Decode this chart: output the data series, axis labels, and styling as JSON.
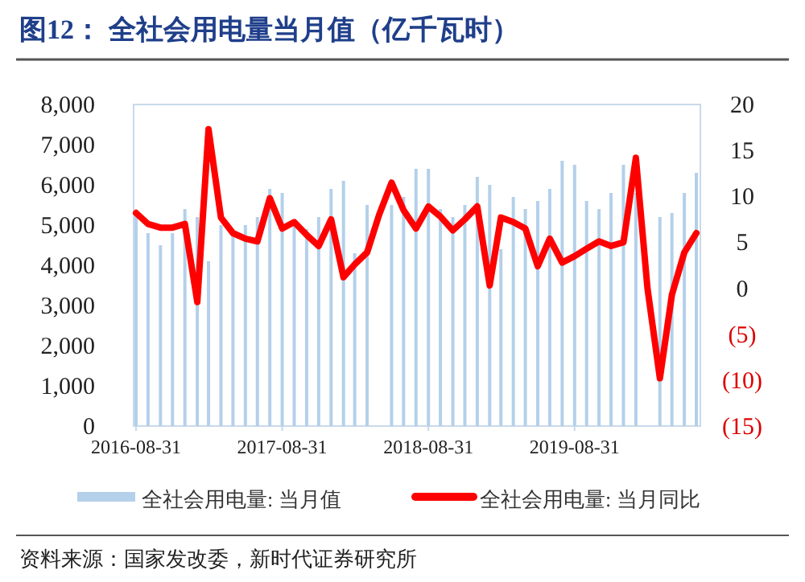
{
  "chart_data": {
    "type": "bar",
    "title": "图12：  全社会用电量当月值（亿千瓦时）",
    "x": [
      "2016-08-31",
      "2016-09-30",
      "2016-10-31",
      "2016-11-30",
      "2016-12-31",
      "2017-01-31",
      "2017-02-28",
      "2017-03-31",
      "2017-04-30",
      "2017-05-31",
      "2017-06-30",
      "2017-07-31",
      "2017-08-31",
      "2017-09-30",
      "2017-10-31",
      "2017-11-30",
      "2017-12-31",
      "2018-01-31",
      "2018-02-28",
      "2018-03-31",
      "2018-04-30",
      "2018-05-31",
      "2018-06-30",
      "2018-07-31",
      "2018-08-31",
      "2018-09-30",
      "2018-10-31",
      "2018-11-30",
      "2018-12-31",
      "2019-01-31",
      "2019-02-28",
      "2019-03-31",
      "2019-04-30",
      "2019-05-31",
      "2019-06-30",
      "2019-07-31",
      "2019-08-31",
      "2019-09-30",
      "2019-10-31",
      "2019-11-30",
      "2019-12-31",
      "2020-01-31",
      "2020-02-29",
      "2020-03-31",
      "2020-04-30",
      "2020-05-31",
      "2020-06-30"
    ],
    "series": [
      {
        "name": "全社会用电量: 当月值",
        "color": "#b4d0ea",
        "values": [
          5300,
          4800,
          4500,
          4800,
          5400,
          5200,
          4100,
          5000,
          4800,
          5000,
          5200,
          5900,
          5800,
          5000,
          4900,
          5200,
          5900,
          6100,
          4300,
          5500,
          null,
          5500,
          5700,
          6400,
          6400,
          5400,
          5200,
          5500,
          6200,
          6000,
          4400,
          5700,
          5400,
          5600,
          5900,
          6600,
          6500,
          5600,
          5400,
          5800,
          6500,
          5800,
          null,
          5200,
          5300,
          5800,
          6300
        ]
      },
      {
        "name": "全社会用电量: 当月同比",
        "type": "line",
        "axis": "y2",
        "color": "#ff0000",
        "values": [
          8.2,
          7.0,
          6.6,
          6.6,
          7.0,
          -1.5,
          17.3,
          7.7,
          6.0,
          5.4,
          5.1,
          9.8,
          6.5,
          7.2,
          5.8,
          4.6,
          7.5,
          1.2,
          2.6,
          3.9,
          8.0,
          11.5,
          8.5,
          6.5,
          8.9,
          7.8,
          6.3,
          7.5,
          8.9,
          0.3,
          7.7,
          7.2,
          6.5,
          2.4,
          5.4,
          2.8,
          3.5,
          4.3,
          5.1,
          4.6,
          5.0,
          14.2,
          0.0,
          -9.8,
          -0.7,
          3.9,
          6.0
        ]
      }
    ],
    "xlim": [
      "2016-08-25",
      "2020-07-10"
    ],
    "xticks": [
      {
        "value": "2016-08-31",
        "label": "2016-08-31"
      },
      {
        "value": "2017-08-31",
        "label": "2017-08-31"
      },
      {
        "value": "2018-08-31",
        "label": "2018-08-31"
      },
      {
        "value": "2019-08-31",
        "label": "2019-08-31"
      }
    ],
    "ylim": [
      0,
      8000
    ],
    "yticks": [
      {
        "value": 0,
        "label": "0"
      },
      {
        "value": 1000,
        "label": "1,000"
      },
      {
        "value": 2000,
        "label": "2,000"
      },
      {
        "value": 3000,
        "label": "3,000"
      },
      {
        "value": 4000,
        "label": "4,000"
      },
      {
        "value": 5000,
        "label": "5,000"
      },
      {
        "value": 6000,
        "label": "6,000"
      },
      {
        "value": 7000,
        "label": "7,000"
      },
      {
        "value": 8000,
        "label": "8,000"
      }
    ],
    "y2lim": [
      -15,
      20
    ],
    "y2ticks": [
      {
        "value": -15,
        "label": "(15)"
      },
      {
        "value": -10,
        "label": "(10)"
      },
      {
        "value": -5,
        "label": "(5)"
      },
      0,
      5,
      10,
      15,
      20
    ],
    "legend": "bottom",
    "annotations": [
      "资料来源：国家发改委，新时代证券研究所"
    ]
  }
}
